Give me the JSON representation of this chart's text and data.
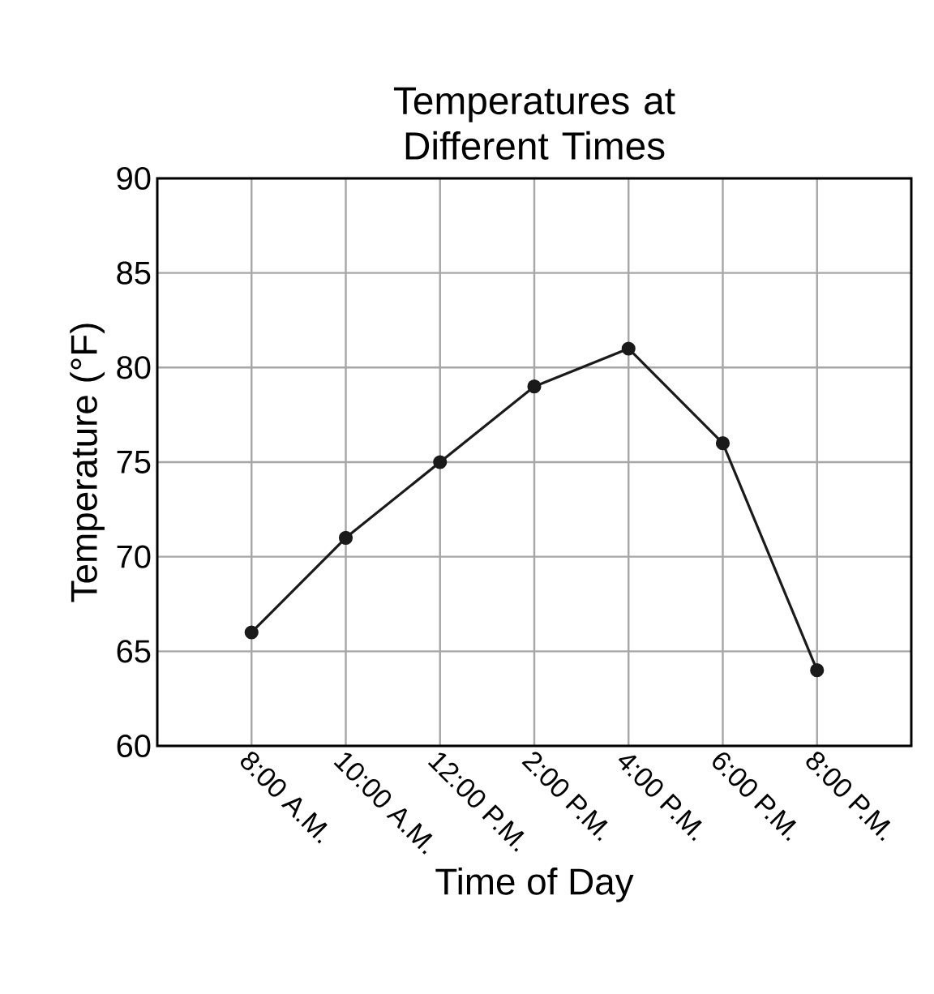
{
  "chart_data": {
    "type": "line",
    "title": "Temperatures at Different Times",
    "xlabel": "Time of Day",
    "ylabel": "Temperature (°F)",
    "categories": [
      "8:00 A.M.",
      "10:00 A.M.",
      "12:00 P.M.",
      "2:00 P.M.",
      "4:00 P.M.",
      "6:00 P.M.",
      "8:00 P.M."
    ],
    "values": [
      66,
      71,
      75,
      79,
      81,
      76,
      64
    ],
    "color": "#1a1a1a",
    "ylim": [
      60,
      90
    ],
    "yticks": [
      60,
      65,
      70,
      75,
      80,
      85,
      90
    ],
    "grid": true,
    "marker": "circle",
    "line_style": "solid"
  }
}
